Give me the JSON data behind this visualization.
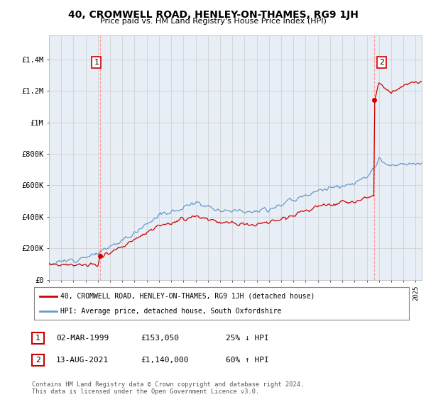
{
  "title": "40, CROMWELL ROAD, HENLEY-ON-THAMES, RG9 1JH",
  "subtitle": "Price paid vs. HM Land Registry's House Price Index (HPI)",
  "ylabel_ticks": [
    "£0",
    "£200K",
    "£400K",
    "£600K",
    "£800K",
    "£1M",
    "£1.2M",
    "£1.4M"
  ],
  "ylabel_values": [
    0,
    200000,
    400000,
    600000,
    800000,
    1000000,
    1200000,
    1400000
  ],
  "ylim": [
    0,
    1550000
  ],
  "xlim_start": 1995.0,
  "xlim_end": 2025.5,
  "sale1_date": 1999.17,
  "sale1_price": 153050,
  "sale1_label": "1",
  "sale2_date": 2021.62,
  "sale2_price": 1140000,
  "sale2_label": "2",
  "legend_line1": "40, CROMWELL ROAD, HENLEY-ON-THAMES, RG9 1JH (detached house)",
  "legend_line2": "HPI: Average price, detached house, South Oxfordshire",
  "table_row1": [
    "1",
    "02-MAR-1999",
    "£153,050",
    "25% ↓ HPI"
  ],
  "table_row2": [
    "2",
    "13-AUG-2021",
    "£1,140,000",
    "60% ↑ HPI"
  ],
  "footnote": "Contains HM Land Registry data © Crown copyright and database right 2024.\nThis data is licensed under the Open Government Licence v3.0.",
  "color_sale": "#cc0000",
  "color_hpi": "#6699cc",
  "color_grid": "#cccccc",
  "color_vline": "#ff9999",
  "bg_chart": "#e8eef5",
  "background_color": "#ffffff"
}
